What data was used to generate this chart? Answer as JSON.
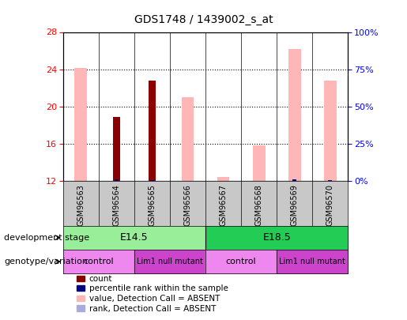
{
  "title": "GDS1748 / 1439002_s_at",
  "samples": [
    "GSM96563",
    "GSM96564",
    "GSM96565",
    "GSM96566",
    "GSM96567",
    "GSM96568",
    "GSM96569",
    "GSM96570"
  ],
  "ylim_left": [
    12,
    28
  ],
  "ylim_right": [
    0,
    100
  ],
  "yticks_left": [
    12,
    16,
    20,
    24,
    28
  ],
  "yticks_right": [
    0,
    25,
    50,
    75,
    100
  ],
  "ytick_labels_right": [
    "0%",
    "25%",
    "50%",
    "75%",
    "100%"
  ],
  "pink_bars": [
    24.1,
    null,
    null,
    21.0,
    12.4,
    15.8,
    26.2,
    22.8
  ],
  "dark_red_bars": [
    null,
    18.9,
    22.8,
    null,
    null,
    null,
    null,
    null
  ],
  "blue_bars_rank": [
    null,
    12.15,
    12.1,
    null,
    null,
    null,
    12.15,
    12.1
  ],
  "color_pink": "#FFB6B6",
  "color_dark_red": "#8B0000",
  "color_blue": "#000080",
  "color_light_blue": "#AAAADD",
  "color_light_green_e14": "#99EE99",
  "color_dark_green_e18": "#22CC55",
  "color_light_purple": "#EE88EE",
  "color_dark_purple": "#CC44CC",
  "color_gray_bg": "#C8C8C8",
  "legend_items": [
    {
      "label": "count",
      "color": "#8B0000"
    },
    {
      "label": "percentile rank within the sample",
      "color": "#000080"
    },
    {
      "label": "value, Detection Call = ABSENT",
      "color": "#FFB6B6"
    },
    {
      "label": "rank, Detection Call = ABSENT",
      "color": "#AAAADD"
    }
  ]
}
